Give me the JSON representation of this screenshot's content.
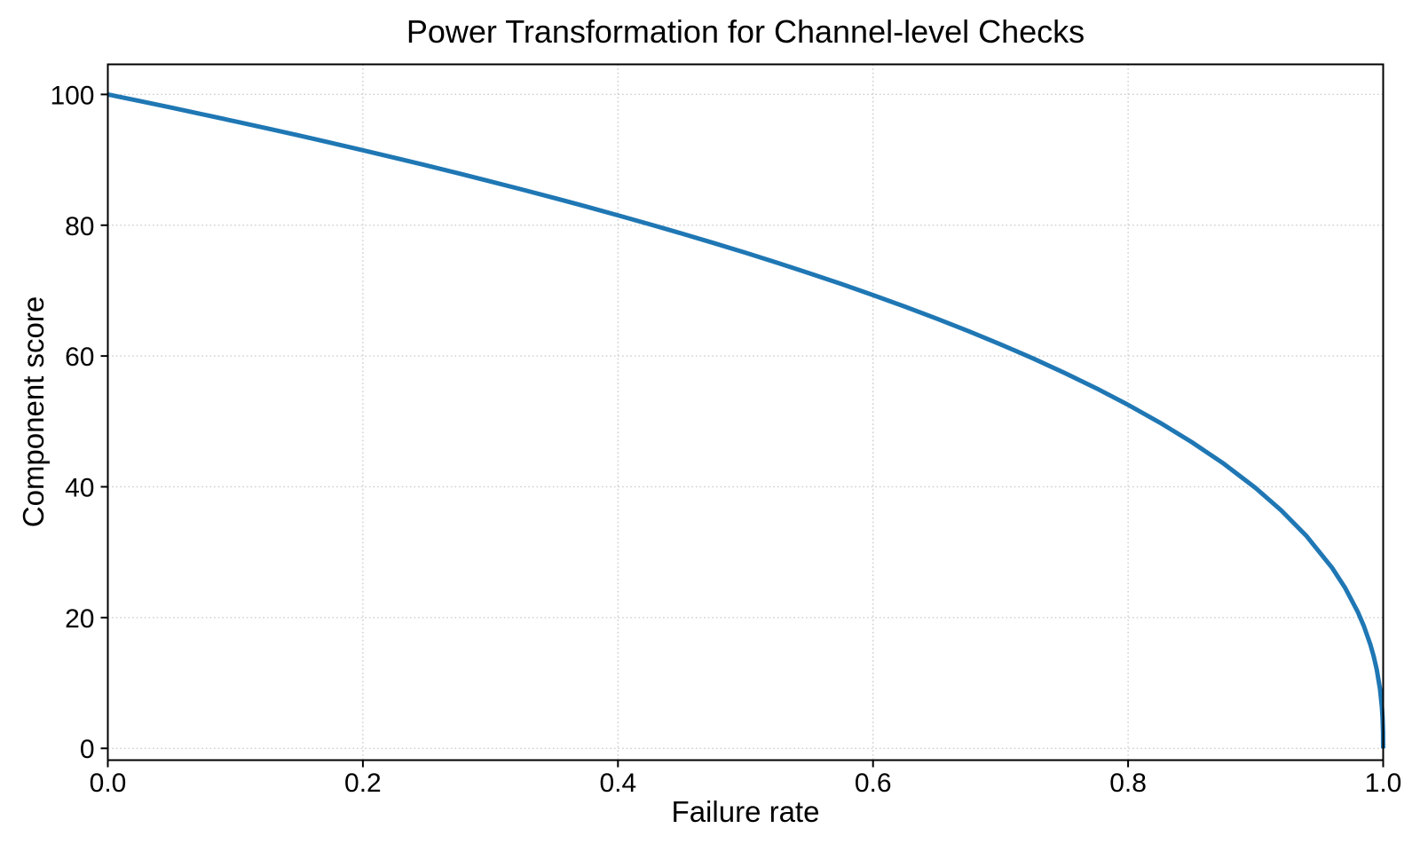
{
  "chart_data": {
    "type": "line",
    "title": "Power Transformation for Channel-level Checks",
    "xlabel": "Failure rate",
    "ylabel": "Component score",
    "xlim": [
      0,
      1
    ],
    "ylim": [
      -1.8,
      104.6
    ],
    "x_ticks": [
      0.0,
      0.2,
      0.4,
      0.6,
      0.8,
      1.0
    ],
    "x_tick_labels": [
      "0.0",
      "0.2",
      "0.4",
      "0.6",
      "0.8",
      "1.0"
    ],
    "y_ticks": [
      0,
      20,
      40,
      60,
      80,
      100
    ],
    "y_tick_labels": [
      "0",
      "20",
      "40",
      "60",
      "80",
      "100"
    ],
    "grid": true,
    "grid_style": "dotted",
    "legend": false,
    "colors": {
      "line": "#1f77b4",
      "grid": "#c9c9c9",
      "axis": "#000000"
    },
    "series": [
      {
        "name": "component-score-curve",
        "formula": "y = 100 * (1 - x)^0.4",
        "color": "#1f77b4",
        "x": [
          0,
          0.025,
          0.05,
          0.075,
          0.1,
          0.125,
          0.15,
          0.175,
          0.2,
          0.225,
          0.25,
          0.275,
          0.3,
          0.325,
          0.35,
          0.375,
          0.4,
          0.425,
          0.45,
          0.475,
          0.5,
          0.525,
          0.55,
          0.575,
          0.6,
          0.625,
          0.65,
          0.675,
          0.7,
          0.725,
          0.75,
          0.775,
          0.8,
          0.825,
          0.85,
          0.875,
          0.9,
          0.92,
          0.94,
          0.96,
          0.97,
          0.98,
          0.985,
          0.99,
          0.9925,
          0.995,
          0.9975,
          0.999,
          0.9995,
          0.9999,
          1.0
        ],
        "y": [
          100,
          98.99,
          97.97,
          96.93,
          95.87,
          94.8,
          93.71,
          92.59,
          91.46,
          90.31,
          89.13,
          87.93,
          86.7,
          85.45,
          84.17,
          82.86,
          81.51,
          80.14,
          78.73,
          77.28,
          75.79,
          74.25,
          72.66,
          71.02,
          69.31,
          67.55,
          65.71,
          63.79,
          61.78,
          59.67,
          57.43,
          55.07,
          52.53,
          49.8,
          46.82,
          43.53,
          39.81,
          36.41,
          32.45,
          27.6,
          24.6,
          20.91,
          18.64,
          15.85,
          14.13,
          12.01,
          9.1,
          6.31,
          4.78,
          2.51,
          0
        ]
      }
    ]
  }
}
